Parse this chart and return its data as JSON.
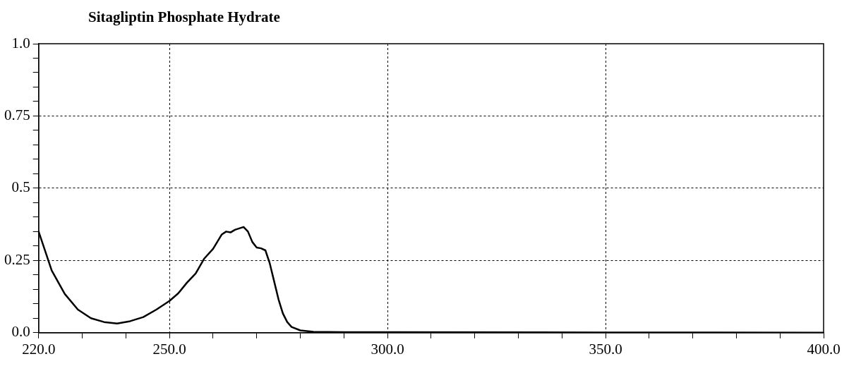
{
  "chart_data": {
    "type": "line",
    "title": "Sitagliptin Phosphate Hydrate",
    "x": [
      220,
      223,
      226,
      229,
      232,
      235,
      238,
      241,
      244,
      247,
      250,
      252,
      254,
      256,
      258,
      260,
      262,
      263,
      264,
      265,
      266,
      267,
      268,
      269,
      270,
      271,
      272,
      273,
      274,
      275,
      276,
      277,
      278,
      280,
      283,
      290,
      300,
      350,
      400
    ],
    "series": [
      {
        "color": "#000000",
        "values": [
          0.35,
          0.215,
          0.134,
          0.08,
          0.05,
          0.037,
          0.032,
          0.04,
          0.054,
          0.08,
          0.11,
          0.136,
          0.173,
          0.205,
          0.257,
          0.29,
          0.34,
          0.35,
          0.347,
          0.356,
          0.361,
          0.366,
          0.35,
          0.314,
          0.295,
          0.292,
          0.285,
          0.24,
          0.178,
          0.116,
          0.067,
          0.037,
          0.02,
          0.008,
          0.003,
          0.002,
          0.002,
          0.001,
          0.0
        ]
      }
    ],
    "xlim": [
      220,
      400
    ],
    "xticks": [
      {
        "value": 220,
        "label": "220.0"
      },
      {
        "value": 230,
        "label": null
      },
      {
        "value": 240,
        "label": null
      },
      {
        "value": 250,
        "label": "250.0"
      },
      {
        "value": 260,
        "label": null
      },
      {
        "value": 270,
        "label": null
      },
      {
        "value": 280,
        "label": null
      },
      {
        "value": 290,
        "label": null
      },
      {
        "value": 300,
        "label": "300.0"
      },
      {
        "value": 310,
        "label": null
      },
      {
        "value": 320,
        "label": null
      },
      {
        "value": 330,
        "label": null
      },
      {
        "value": 340,
        "label": null
      },
      {
        "value": 350,
        "label": "350.0"
      },
      {
        "value": 360,
        "label": null
      },
      {
        "value": 370,
        "label": null
      },
      {
        "value": 380,
        "label": null
      },
      {
        "value": 390,
        "label": null
      },
      {
        "value": 400,
        "label": "400.0"
      }
    ],
    "ylim": [
      0,
      1
    ],
    "yticks": [
      {
        "value": 0,
        "label": "0.0"
      },
      {
        "value": 0.05,
        "label": null
      },
      {
        "value": 0.1,
        "label": null
      },
      {
        "value": 0.15,
        "label": null
      },
      {
        "value": 0.2,
        "label": null
      },
      0.25,
      {
        "value": 0.3,
        "label": null
      },
      {
        "value": 0.35,
        "label": null
      },
      {
        "value": 0.4,
        "label": null
      },
      {
        "value": 0.45,
        "label": null
      },
      0.5,
      {
        "value": 0.55,
        "label": null
      },
      {
        "value": 0.6,
        "label": null
      },
      {
        "value": 0.65,
        "label": null
      },
      {
        "value": 0.7,
        "label": null
      },
      0.75,
      {
        "value": 0.8,
        "label": null
      },
      {
        "value": 0.85,
        "label": null
      },
      {
        "value": 0.9,
        "label": null
      },
      {
        "value": 0.95,
        "label": null
      },
      {
        "value": 1,
        "label": "1.0"
      }
    ],
    "grid": true,
    "legend": false,
    "marker": "none",
    "line_style": "solid"
  }
}
